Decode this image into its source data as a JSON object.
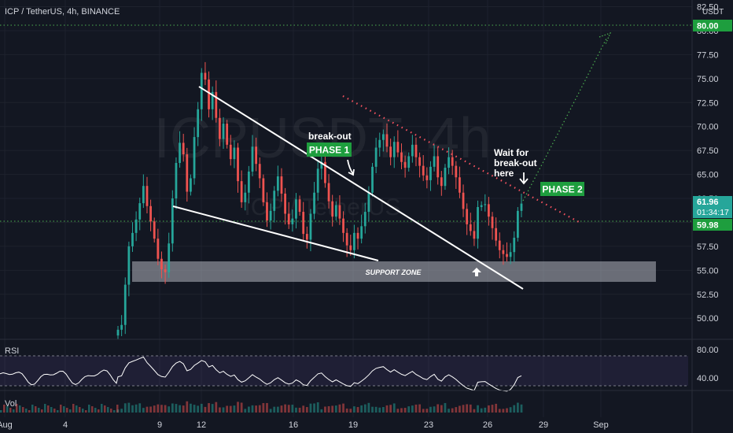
{
  "header": {
    "symbol_line": "ICP / TetherUS, 4h, BINANCE",
    "watermark_big": "ICPUSDT, 4h",
    "watermark_small": "ICP / TetherUS",
    "currency": "USDT"
  },
  "colors": {
    "background": "#131722",
    "up": "#26a69a",
    "down": "#ef5350",
    "target_line": "#4caf50",
    "tag_green": "#1e9e3e",
    "rsi_band": "#7e57c2"
  },
  "annotations": {
    "phase1": "PHASE 1",
    "phase2": "PHASE 2",
    "breakout": "break-out",
    "wait_line1": "Wait for",
    "wait_line2": "break-out",
    "wait_line3": "here",
    "support": "SUPPORT ZONE"
  },
  "price_tags": {
    "target": "80.00",
    "current": "61.96",
    "countdown": "01:34:17",
    "level": "59.98"
  },
  "panes": {
    "rsi_label": "RSI",
    "vol_label": "Vol",
    "rsi_ticks": [
      "80.00",
      "40.00"
    ]
  },
  "chart_data": {
    "type": "candlestick",
    "title": "ICP / TetherUS, 4h, BINANCE",
    "y_unit": "USDT",
    "y_ticks": [
      "82.50",
      "80.00",
      "77.50",
      "75.00",
      "72.50",
      "70.00",
      "67.50",
      "65.00",
      "62.50",
      "60.00",
      "57.50",
      "55.00",
      "52.50",
      "50.00"
    ],
    "x_ticks": [
      "Aug",
      "4",
      "9",
      "12",
      "16",
      "19",
      "23",
      "26",
      "29",
      "Sep"
    ],
    "ylim": [
      47.8,
      83.2
    ],
    "grid": true,
    "closes": [
      48.8,
      49.3,
      53.5,
      57.5,
      58.9,
      60.3,
      62.0,
      63.8,
      61.7,
      60.1,
      58.3,
      56.2,
      55.1,
      54.8,
      57.8,
      62.5,
      66.2,
      68.3,
      67.1,
      63.2,
      64.6,
      68.9,
      71.8,
      75.6,
      74.9,
      71.8,
      73.6,
      70.9,
      68.7,
      70.3,
      68.1,
      66.6,
      67.8,
      64.3,
      62.1,
      63.1,
      65.3,
      67.9,
      66.1,
      64.6,
      62.1,
      60.2,
      61.2,
      63.3,
      64.8,
      63.0,
      60.9,
      59.8,
      60.4,
      62.4,
      61.1,
      58.8,
      58.2,
      60.9,
      63.1,
      65.6,
      66.3,
      64.1,
      62.2,
      60.6,
      61.8,
      60.4,
      58.9,
      57.6,
      57.1,
      58.9,
      58.3,
      59.6,
      61.1,
      63.1,
      65.8,
      67.8,
      68.6,
      69.2,
      67.9,
      66.8,
      68.4,
      67.3,
      66.3,
      65.7,
      66.9,
      68.1,
      66.8,
      65.9,
      64.9,
      64.4,
      65.8,
      66.9,
      64.7,
      63.8,
      65.7,
      66.8,
      65.9,
      64.7,
      63.1,
      61.4,
      59.8,
      59.1,
      58.3,
      61.6,
      61.8,
      61.9,
      60.6,
      59.4,
      58.1,
      57.1,
      56.7,
      56.4,
      56.9,
      58.4,
      61.2,
      61.96
    ],
    "target_price": 80.0,
    "support_zone": [
      54.1,
      55.9
    ],
    "level_line": 59.98,
    "rsi_levels": [
      80,
      40
    ]
  }
}
